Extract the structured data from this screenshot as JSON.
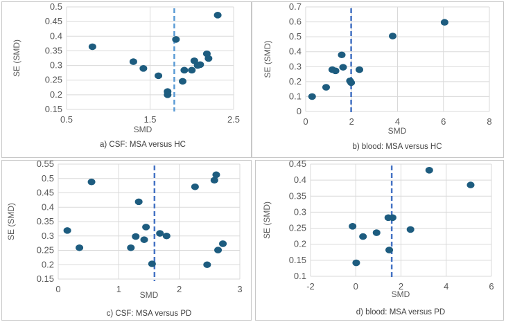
{
  "chart_data": [
    {
      "type": "scatter",
      "title": "a) CSF: MSA versus HC",
      "xlabel": "SMD",
      "ylabel": "SE (SMD)",
      "xlim": [
        0.5,
        2.5
      ],
      "ylim": [
        0.15,
        0.5
      ],
      "xticks": [
        "0.5",
        "1.5",
        "2.5"
      ],
      "yticks": [
        "0.15",
        "0.2",
        "0.25",
        "0.3",
        "0.35",
        "0.4",
        "0.45",
        "0.5"
      ],
      "grid": true,
      "reference_line_x": 1.79,
      "reference_color": "#5b9bd5",
      "point_color": "#1d5c7f",
      "points": [
        [
          0.81,
          0.364
        ],
        [
          1.3,
          0.313
        ],
        [
          1.42,
          0.29
        ],
        [
          1.6,
          0.265
        ],
        [
          1.71,
          0.211
        ],
        [
          1.71,
          0.2
        ],
        [
          1.81,
          0.389
        ],
        [
          1.89,
          0.246
        ],
        [
          1.91,
          0.284
        ],
        [
          2.0,
          0.284
        ],
        [
          2.03,
          0.316
        ],
        [
          2.07,
          0.3
        ],
        [
          2.1,
          0.303
        ],
        [
          2.18,
          0.34
        ],
        [
          2.2,
          0.324
        ],
        [
          2.31,
          0.472
        ]
      ]
    },
    {
      "type": "scatter",
      "title": "b) blood: MSA versus HC",
      "xlabel": "SMD",
      "ylabel": "SE (SMD)",
      "xlim": [
        0,
        8
      ],
      "ylim": [
        0,
        0.7
      ],
      "xticks": [
        "0",
        "2",
        "4",
        "6",
        "8"
      ],
      "yticks": [
        "0",
        "0.1",
        "0.2",
        "0.3",
        "0.4",
        "0.5",
        "0.6",
        "0.7"
      ],
      "grid": true,
      "reference_line_x": 1.98,
      "reference_color": "#4472c4",
      "point_color": "#1d5c7f",
      "points": [
        [
          0.28,
          0.1
        ],
        [
          0.89,
          0.162
        ],
        [
          1.16,
          0.28
        ],
        [
          1.3,
          0.272
        ],
        [
          1.57,
          0.379
        ],
        [
          1.63,
          0.296
        ],
        [
          1.93,
          0.205
        ],
        [
          1.98,
          0.193
        ],
        [
          2.34,
          0.28
        ],
        [
          3.79,
          0.505
        ],
        [
          6.05,
          0.597
        ]
      ]
    },
    {
      "type": "scatter",
      "title": "c) CSF: MSA versus PD",
      "xlabel": "SMD",
      "ylabel": "SE (SMD)",
      "xlim": [
        0,
        3
      ],
      "ylim": [
        0.15,
        0.55
      ],
      "xticks": [
        "0",
        "1",
        "2",
        "3"
      ],
      "yticks": [
        "0.15",
        "0.2",
        "0.25",
        "0.3",
        "0.35",
        "0.4",
        "0.45",
        "0.5",
        "0.55"
      ],
      "grid": true,
      "reference_line_x": 1.59,
      "reference_color": "#4472c4",
      "point_color": "#1d5c7f",
      "points": [
        [
          0.15,
          0.319
        ],
        [
          0.35,
          0.259
        ],
        [
          0.55,
          0.488
        ],
        [
          1.2,
          0.259
        ],
        [
          1.28,
          0.298
        ],
        [
          1.33,
          0.419
        ],
        [
          1.42,
          0.287
        ],
        [
          1.45,
          0.331
        ],
        [
          1.55,
          0.203
        ],
        [
          1.68,
          0.309
        ],
        [
          1.79,
          0.3
        ],
        [
          2.26,
          0.471
        ],
        [
          2.46,
          0.2
        ],
        [
          2.58,
          0.494
        ],
        [
          2.61,
          0.513
        ],
        [
          2.64,
          0.251
        ],
        [
          2.72,
          0.273
        ]
      ]
    },
    {
      "type": "scatter",
      "title": "d) blood: MSA versus PD",
      "xlabel": "SMD",
      "ylabel": "SE (SMD)",
      "xlim": [
        -2,
        6
      ],
      "ylim": [
        0.1,
        0.45
      ],
      "xticks": [
        "-2",
        "0",
        "2",
        "4",
        "6"
      ],
      "yticks": [
        "0.1",
        "0.15",
        "0.2",
        "0.25",
        "0.3",
        "0.35",
        "0.4",
        "0.45"
      ],
      "grid": true,
      "reference_line_x": 1.59,
      "reference_color": "#4472c4",
      "point_color": "#1d5c7f",
      "points": [
        [
          -0.14,
          0.256
        ],
        [
          0.02,
          0.142
        ],
        [
          0.32,
          0.224
        ],
        [
          0.92,
          0.236
        ],
        [
          1.44,
          0.283
        ],
        [
          1.63,
          0.283
        ],
        [
          1.48,
          0.182
        ],
        [
          2.42,
          0.246
        ],
        [
          3.25,
          0.431
        ],
        [
          5.08,
          0.385
        ]
      ]
    }
  ]
}
